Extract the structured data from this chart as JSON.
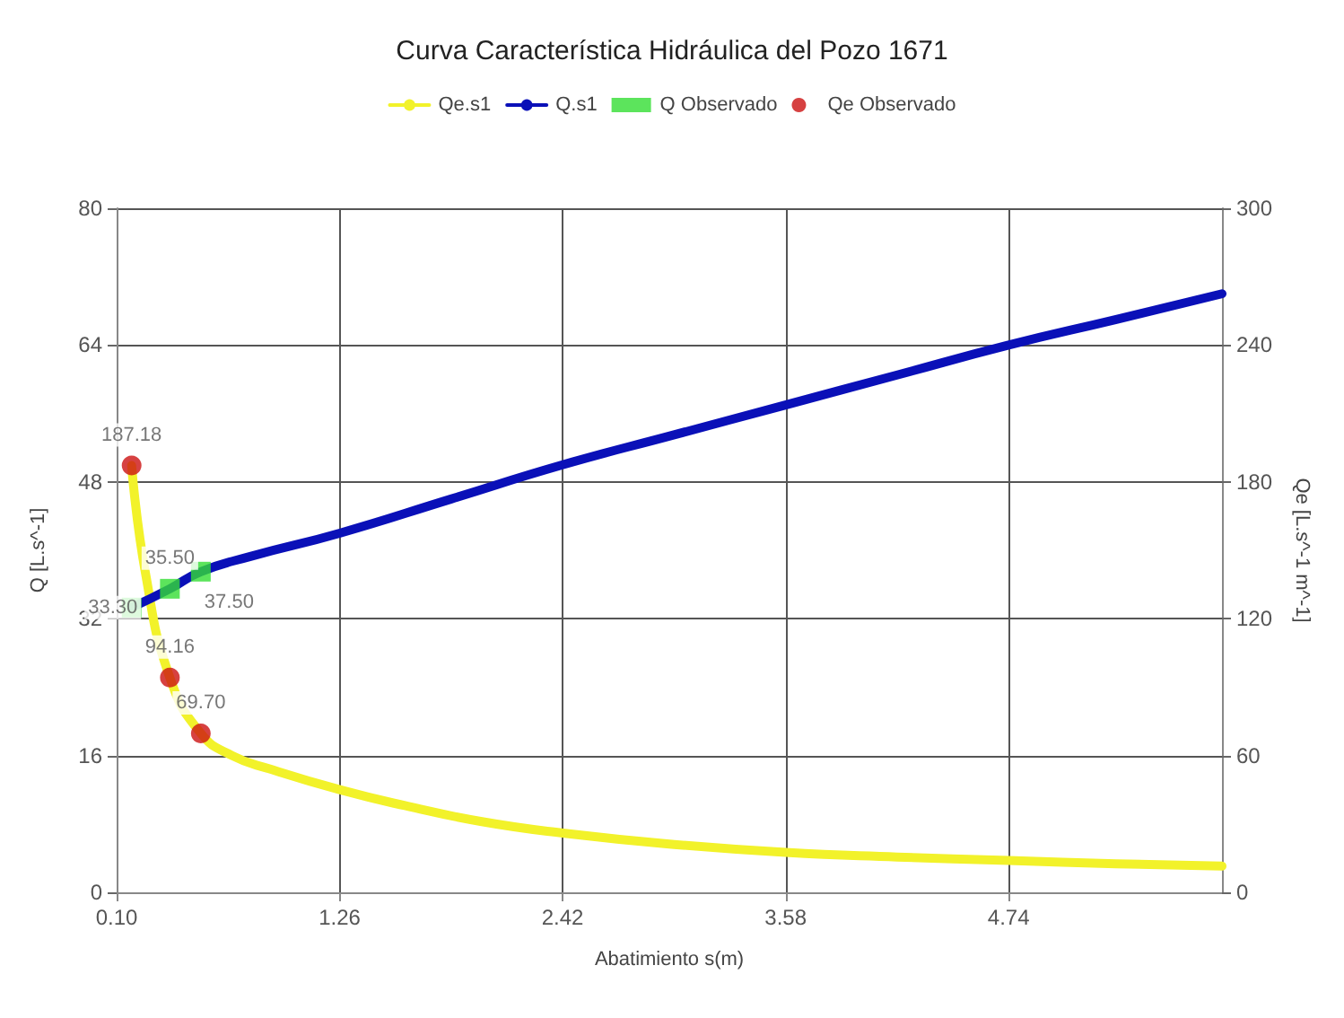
{
  "chart_data": {
    "type": "line",
    "title": "Curva Característica Hidráulica del Pozo 1671",
    "xlabel": "Abatimiento s(m)",
    "ylabel": "Q [L.s^-1]",
    "y2label": "Qe [L.s^-1 m^-1]",
    "xlim": [
      0.1,
      5.85
    ],
    "xticks": [
      {
        "value": 0.1,
        "label": "0.10"
      },
      {
        "value": 1.26,
        "label": "1.26"
      },
      {
        "value": 2.42,
        "label": "2.42"
      },
      {
        "value": 3.58,
        "label": "3.58"
      },
      {
        "value": 4.74,
        "label": "4.74"
      }
    ],
    "ylim": [
      0,
      80
    ],
    "yticks": [
      0,
      16,
      32,
      48,
      64,
      80
    ],
    "y2lim": [
      0,
      300
    ],
    "y2ticks": [
      0,
      60,
      120,
      180,
      240,
      300
    ],
    "grid": true,
    "legend": "top",
    "marker": "none",
    "line_style": "solid",
    "series": [
      {
        "name": "Qe.s1",
        "color": "#f2f22a",
        "axis": "y2",
        "x": [
          0.178,
          0.25,
          0.377,
          0.538,
          0.7,
          0.9,
          1.26,
          1.6,
          2.0,
          2.42,
          3.0,
          3.58,
          4.16,
          4.74,
          5.3,
          5.85
        ],
        "values": [
          187.18,
          140,
          94.16,
          69.7,
          60,
          54,
          45,
          38,
          31,
          26,
          21,
          17.5,
          15.5,
          14,
          12.5,
          11.5
        ]
      },
      {
        "name": "Q.s1",
        "color": "#0a10b8",
        "x": [
          0.178,
          0.377,
          0.538,
          0.8,
          1.26,
          1.84,
          2.42,
          3.0,
          3.58,
          4.16,
          4.74,
          5.3,
          5.85
        ],
        "values": [
          33.3,
          35.5,
          37.5,
          39.3,
          42,
          46,
          50,
          53.5,
          57,
          60.5,
          64,
          67,
          70
        ]
      },
      {
        "name": "Q Observado",
        "type": "scatter",
        "marker": "square",
        "color": "#33dd33",
        "x": [
          0.178,
          0.377,
          0.538
        ],
        "values": [
          33.3,
          35.5,
          37.5
        ],
        "value_labels": [
          "33.30",
          "35.50",
          "37.50"
        ]
      },
      {
        "name": "Qe Observado",
        "type": "scatter",
        "marker": "circle",
        "color": "#cc1111",
        "axis": "y2",
        "x": [
          0.178,
          0.377,
          0.538
        ],
        "values": [
          187.18,
          94.16,
          69.7
        ],
        "value_labels": [
          "187.18",
          "94.16",
          "69.70"
        ]
      }
    ]
  }
}
